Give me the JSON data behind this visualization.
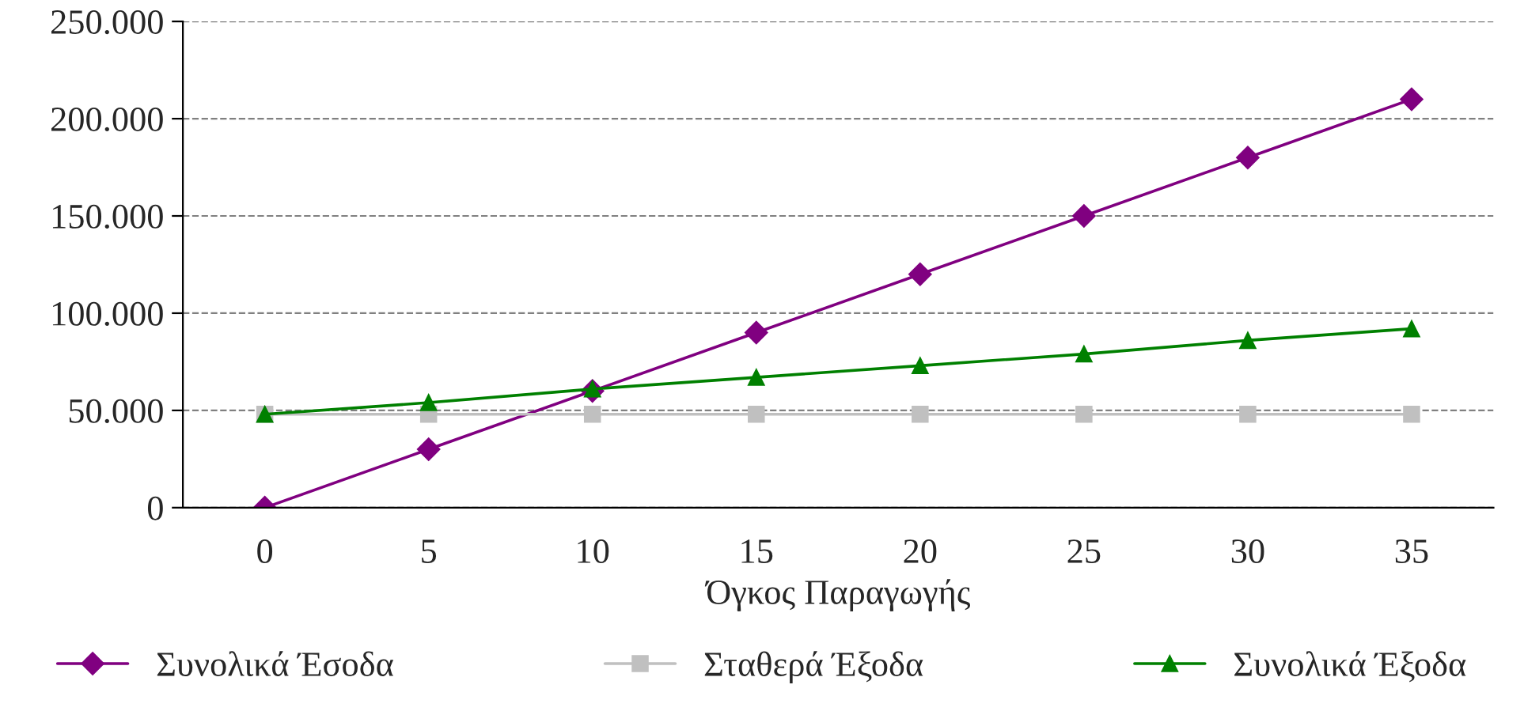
{
  "chart_data": {
    "type": "line",
    "xlabel": "Όγκος Παραγωγής",
    "categories": [
      "0",
      "5",
      "10",
      "15",
      "20",
      "25",
      "30",
      "35"
    ],
    "series": [
      {
        "name": "Συνολικά Έσοδα",
        "color": "#800080",
        "marker": "diamond",
        "values": [
          0,
          30000,
          60000,
          90000,
          120000,
          150000,
          180000,
          210000
        ]
      },
      {
        "name": "Σταθερά Έξοδα",
        "color": "#c0c0c0",
        "marker": "square",
        "values": [
          48000,
          48000,
          48000,
          48000,
          48000,
          48000,
          48000,
          48000
        ]
      },
      {
        "name": "Συνολικά Έξοδα",
        "color": "#008000",
        "marker": "triangle",
        "values": [
          48000,
          54000,
          61000,
          67000,
          73000,
          79000,
          86000,
          92000
        ]
      }
    ],
    "ylim": [
      0,
      250000
    ],
    "yticks": [
      {
        "value": 0,
        "label": "0"
      },
      {
        "value": 50000,
        "label": "50.000"
      },
      {
        "value": 100000,
        "label": "100.000"
      },
      {
        "value": 150000,
        "label": "150.000"
      },
      {
        "value": 200000,
        "label": "200.000"
      },
      {
        "value": 250000,
        "label": "250.000"
      }
    ],
    "grid": "y",
    "legend": "bottom",
    "line_style": "solid"
  }
}
